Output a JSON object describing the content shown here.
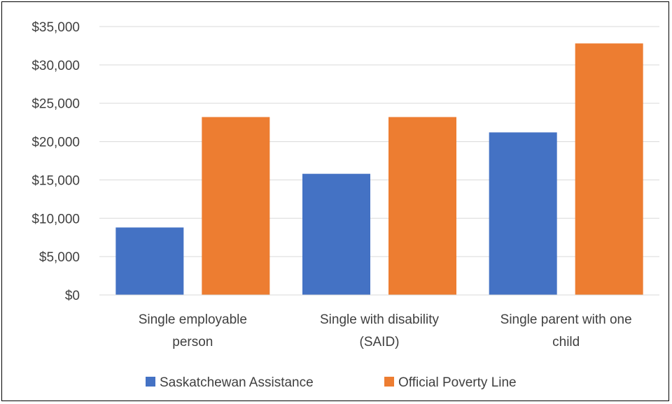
{
  "chart_data": {
    "type": "bar",
    "title": "",
    "xlabel": "",
    "ylabel": "",
    "categories": [
      [
        "Single employable",
        "person"
      ],
      [
        "Single with disability",
        "(SAID)"
      ],
      [
        "Single parent with one",
        "child"
      ]
    ],
    "series": [
      {
        "name": "Saskatchewan Assistance",
        "color": "#4472C4",
        "values": [
          8800,
          15800,
          21200
        ]
      },
      {
        "name": "Official Poverty Line",
        "color": "#ED7D31",
        "values": [
          23200,
          23200,
          32800
        ]
      }
    ],
    "ylim": [
      0,
      35000
    ],
    "yticks": [
      0,
      5000,
      10000,
      15000,
      20000,
      25000,
      30000,
      35000
    ],
    "ytick_labels": [
      "$0",
      "$5,000",
      "$10,000",
      "$15,000",
      "$20,000",
      "$25,000",
      "$30,000",
      "$35,000"
    ],
    "grid": true,
    "legend_position": "bottom"
  }
}
